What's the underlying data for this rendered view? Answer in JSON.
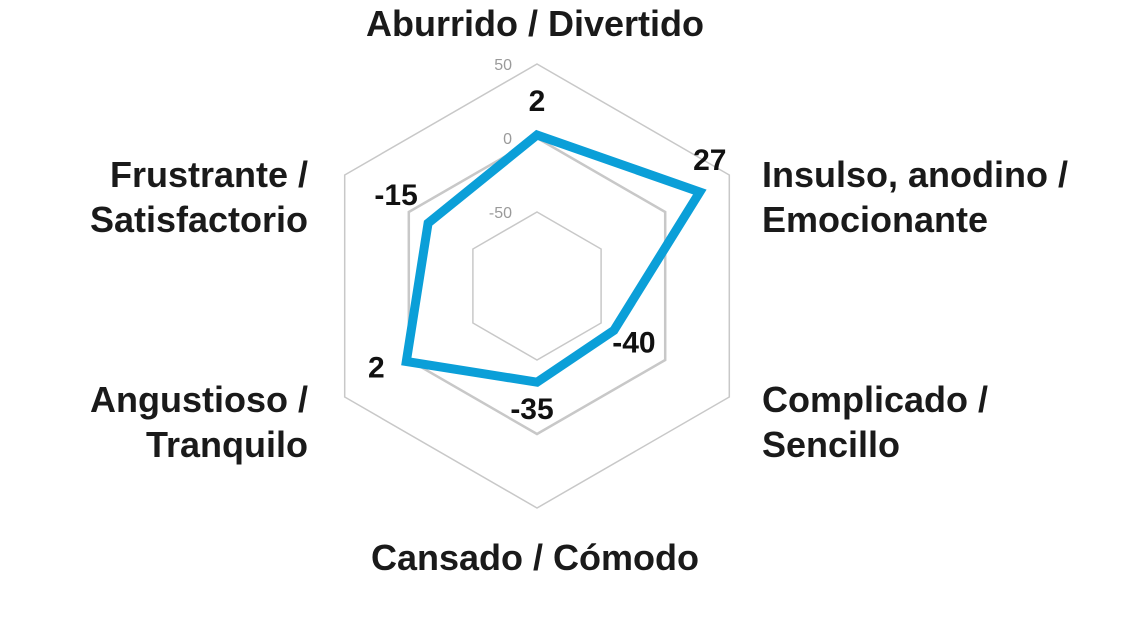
{
  "chart_data": {
    "type": "radar",
    "title": "",
    "axes": [
      {
        "label_lines": [
          "Aburrido / Divertido"
        ]
      },
      {
        "label_lines": [
          "Insulso, anodino /",
          "Emocionante"
        ]
      },
      {
        "label_lines": [
          "Complicado /",
          "Sencillo"
        ]
      },
      {
        "label_lines": [
          "Cansado / Cómodo"
        ]
      },
      {
        "label_lines": [
          "Angustioso /",
          "Tranquilo"
        ]
      },
      {
        "label_lines": [
          "Frustrante /",
          "Satisfactorio"
        ]
      }
    ],
    "rings": [
      50,
      0,
      -50
    ],
    "ring_labels": [
      "50",
      "0",
      "-50"
    ],
    "range": [
      -100,
      50
    ],
    "grid": true,
    "series": [
      {
        "values": [
          2,
          27,
          -40,
          -35,
          2,
          -15
        ],
        "value_labels": [
          "2",
          "27",
          "-40",
          "-35",
          "2",
          "-15"
        ],
        "color": "#0b9fd8"
      }
    ],
    "colors": {
      "grid": "#c8c8c8",
      "series": "#0b9fd8",
      "axis_text": "#1a1a1a",
      "tick_text": "#9a9a9a"
    }
  }
}
